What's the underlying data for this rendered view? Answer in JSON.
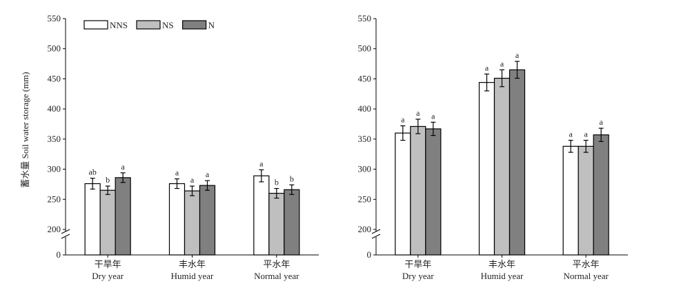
{
  "chart_data": [
    {
      "type": "bar",
      "ylabel": "蓄水量 Soil water storage (mm)",
      "yticks": [
        0,
        200,
        250,
        300,
        350,
        400,
        450,
        500,
        550
      ],
      "ylim": [
        0,
        550
      ],
      "axis_break": [
        0,
        200
      ],
      "categories": [
        {
          "zh": "干旱年",
          "en": "Dry year"
        },
        {
          "zh": "丰水年",
          "en": "Humid year"
        },
        {
          "zh": "平水年",
          "en": "Normal year"
        }
      ],
      "legend": {
        "position": "top-left",
        "show": true
      },
      "series": [
        {
          "name": "NNS",
          "color": "#ffffff",
          "values": [
            276,
            276,
            289
          ],
          "errors": [
            9,
            8,
            10
          ],
          "labels": [
            "ab",
            "a",
            "a"
          ]
        },
        {
          "name": "NS",
          "color": "#bfbfbf",
          "values": [
            265,
            264,
            260
          ],
          "errors": [
            7,
            8,
            8
          ],
          "labels": [
            "b",
            "a",
            "b"
          ]
        },
        {
          "name": "N",
          "color": "#808080",
          "values": [
            286,
            273,
            266
          ],
          "errors": [
            8,
            8,
            8
          ],
          "labels": [
            "a",
            "a",
            "b"
          ]
        }
      ]
    },
    {
      "type": "bar",
      "ylabel": "",
      "yticks": [
        0,
        200,
        250,
        300,
        350,
        400,
        450,
        500,
        550
      ],
      "ylim": [
        0,
        550
      ],
      "axis_break": [
        0,
        200
      ],
      "categories": [
        {
          "zh": "干旱年",
          "en": "Dry year"
        },
        {
          "zh": "丰水年",
          "en": "Humid year"
        },
        {
          "zh": "平水年",
          "en": "Normal year"
        }
      ],
      "legend": {
        "show": false
      },
      "series": [
        {
          "name": "NNS",
          "color": "#ffffff",
          "values": [
            360,
            444,
            338
          ],
          "errors": [
            12,
            14,
            10
          ],
          "labels": [
            "a",
            "a",
            "a"
          ]
        },
        {
          "name": "NS",
          "color": "#bfbfbf",
          "values": [
            371,
            451,
            338
          ],
          "errors": [
            12,
            14,
            10
          ],
          "labels": [
            "a",
            "a",
            "a"
          ]
        },
        {
          "name": "N",
          "color": "#808080",
          "values": [
            367,
            465,
            357
          ],
          "errors": [
            11,
            14,
            11
          ],
          "labels": [
            "a",
            "a",
            "a"
          ]
        }
      ]
    }
  ]
}
